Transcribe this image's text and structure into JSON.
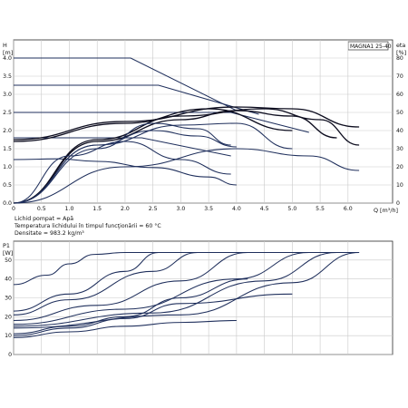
{
  "chart_data": [
    {
      "type": "line",
      "model_label": "MAGNA1 25-40",
      "y_title_left": "H",
      "y_unit_left": "[m]",
      "y_title_right": "eta",
      "y_unit_right": "[%]",
      "x_label": "Q [m³/h]",
      "xlim": [
        0,
        6.8
      ],
      "ylim": [
        0,
        4.5
      ],
      "ylim_right": [
        0,
        90
      ],
      "x_ticks": [
        "0",
        "0.5",
        "1.0",
        "1.5",
        "2.0",
        "2.5",
        "3.0",
        "3.5",
        "4.0",
        "4.5",
        "5.0",
        "5.5",
        "6.0"
      ],
      "y_ticks": [
        "0.0",
        "0.5",
        "1.0",
        "1.5",
        "2.0",
        "2.5",
        "3.0",
        "3.5",
        "4.0"
      ],
      "y_ticks_right": [
        "0",
        "10",
        "20",
        "30",
        "40",
        "50",
        "60",
        "70",
        "80"
      ],
      "grid": true,
      "series": [
        {
          "x": [
            0,
            2.1,
            4.0
          ],
          "values": [
            4.0,
            4.0,
            2.55
          ]
        },
        {
          "x": [
            0,
            2.6,
            4.4
          ],
          "values": [
            3.25,
            3.25,
            2.45
          ]
        },
        {
          "x": [
            0,
            3.9,
            5.3
          ],
          "values": [
            2.5,
            2.5,
            1.95
          ]
        },
        {
          "x": [
            0,
            2.3,
            3.9
          ],
          "values": [
            1.8,
            1.8,
            1.3
          ]
        },
        {
          "x": [
            0,
            0.8,
            1.5,
            2.5,
            3.5,
            4.0
          ],
          "values": [
            1.2,
            1.22,
            1.15,
            0.98,
            0.72,
            0.5
          ]
        },
        {
          "x": [
            0,
            2.0,
            3.5,
            5.0
          ],
          "values": [
            1.7,
            2.2,
            2.6,
            2.0
          ]
        },
        {
          "x": [
            0,
            2.0,
            4.0,
            5.0,
            6.2
          ],
          "values": [
            1.75,
            2.25,
            2.65,
            2.6,
            2.1
          ]
        },
        {
          "x": [
            0,
            1.5,
            3.0,
            4.0,
            5.0,
            5.8
          ],
          "values": [
            0,
            1.7,
            2.3,
            2.55,
            2.4,
            1.8
          ]
        },
        {
          "x": [
            0,
            1.5,
            3.0,
            4.5,
            5.5,
            6.2
          ],
          "values": [
            0,
            1.75,
            2.4,
            2.6,
            2.3,
            1.6
          ]
        },
        {
          "x": [
            0,
            1.5,
            2.5,
            3.3,
            4.0
          ],
          "values": [
            0,
            1.6,
            2.0,
            1.85,
            1.55
          ]
        },
        {
          "x": [
            0,
            1.5,
            3.0,
            4.0,
            5.0
          ],
          "values": [
            0,
            1.6,
            2.15,
            2.2,
            1.5
          ]
        },
        {
          "x": [
            0,
            1.5,
            2.5,
            3.3,
            3.9
          ],
          "values": [
            0,
            1.5,
            2.2,
            2.05,
            1.6
          ]
        },
        {
          "x": [
            0,
            1.0,
            2.0,
            3.0,
            3.9
          ],
          "values": [
            0,
            1.3,
            1.7,
            1.2,
            0.8
          ]
        },
        {
          "x": [
            0,
            2.0,
            4.0,
            5.3,
            6.2
          ],
          "values": [
            0,
            1.0,
            1.5,
            1.3,
            0.9
          ]
        }
      ]
    },
    {
      "type": "line",
      "y_title": "P1",
      "y_unit": "[W]",
      "xlim": [
        0,
        6.8
      ],
      "ylim": [
        0,
        60
      ],
      "y_ticks": [
        "0",
        "10",
        "20",
        "30",
        "40",
        "50"
      ],
      "grid": true,
      "series": [
        {
          "x": [
            0,
            0.6,
            1.0,
            1.45,
            2.0,
            4.0,
            6.2
          ],
          "values": [
            37,
            42,
            48,
            53,
            54,
            54,
            54
          ]
        },
        {
          "x": [
            0,
            1.0,
            2.0,
            2.6
          ],
          "values": [
            23,
            32,
            44,
            54
          ]
        },
        {
          "x": [
            0,
            1.0,
            2.5,
            3.3
          ],
          "values": [
            21,
            29,
            44,
            54
          ]
        },
        {
          "x": [
            0,
            1.5,
            3.0,
            4.2
          ],
          "values": [
            18,
            26,
            39,
            54
          ]
        },
        {
          "x": [
            0,
            2.0,
            4.0,
            5.3
          ],
          "values": [
            16,
            24,
            40,
            54
          ]
        },
        {
          "x": [
            0,
            2.5,
            4.5,
            5.8
          ],
          "values": [
            15,
            22,
            39,
            54
          ]
        },
        {
          "x": [
            0,
            3.0,
            5.0,
            6.2
          ],
          "values": [
            14,
            21,
            38,
            54
          ]
        },
        {
          "x": [
            0,
            1.0,
            2.0,
            3.0,
            4.2
          ],
          "values": [
            11,
            15,
            20,
            30,
            40
          ]
        },
        {
          "x": [
            0,
            1.0,
            2.0,
            3.0,
            5.0
          ],
          "values": [
            10,
            14,
            19,
            27,
            32
          ]
        },
        {
          "x": [
            0,
            1.0,
            2.0,
            3.0,
            4.0
          ],
          "values": [
            9,
            12,
            15,
            17,
            18
          ]
        }
      ]
    }
  ],
  "fluid_notes": [
    "Lichid pompat = Apă",
    "Temperatura lichidului în timpul funcţionării = 60 °C",
    "Densitate = 983.2 kg/m³"
  ]
}
